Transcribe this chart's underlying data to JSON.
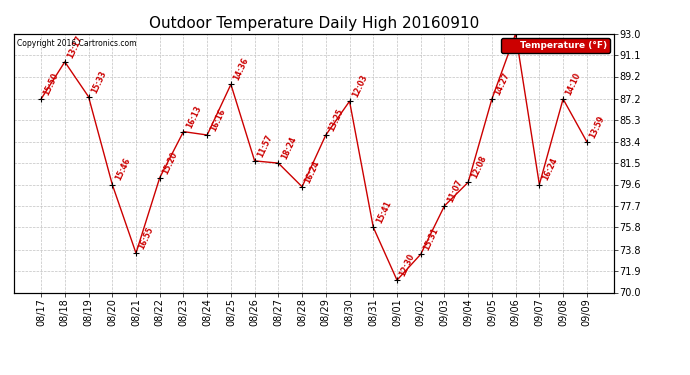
{
  "title": "Outdoor Temperature Daily High 20160910",
  "copyright": "Copyright 2016 Cartronics.com",
  "legend_label": "Temperature (°F)",
  "ylabel_right_values": [
    93.0,
    91.1,
    89.2,
    87.2,
    85.3,
    83.4,
    81.5,
    79.6,
    77.7,
    75.8,
    73.8,
    71.9,
    70.0
  ],
  "dates": [
    "08/17",
    "08/18",
    "08/19",
    "08/20",
    "08/21",
    "08/22",
    "08/23",
    "08/24",
    "08/25",
    "08/26",
    "08/27",
    "08/28",
    "08/29",
    "08/30",
    "08/31",
    "09/01",
    "09/02",
    "09/03",
    "09/04",
    "09/05",
    "09/06",
    "09/07",
    "09/08",
    "09/09"
  ],
  "temps": [
    87.2,
    90.5,
    87.4,
    79.6,
    73.5,
    80.2,
    84.3,
    84.0,
    88.5,
    81.7,
    81.5,
    79.4,
    84.0,
    87.0,
    75.8,
    71.1,
    73.4,
    77.7,
    79.8,
    87.2,
    93.0,
    79.6,
    87.2,
    83.4
  ],
  "time_labels": [
    "15:50",
    "13:17",
    "15:33",
    "15:46",
    "16:55",
    "15:20",
    "16:13",
    "16:16",
    "14:36",
    "11:57",
    "18:24",
    "16:24",
    "13:25",
    "12:03",
    "15:41",
    "12:30",
    "15:31",
    "11:07",
    "12:08",
    "14:27",
    "",
    "16:24",
    "14:10",
    "13:59"
  ],
  "ylim_min": 70.0,
  "ylim_max": 93.0,
  "line_color": "#cc0000",
  "marker_color": "#000000",
  "label_color": "#cc0000",
  "background_color": "#ffffff",
  "grid_color": "#bbbbbb",
  "title_fontsize": 11,
  "tick_fontsize": 7,
  "label_fontsize": 6.5
}
